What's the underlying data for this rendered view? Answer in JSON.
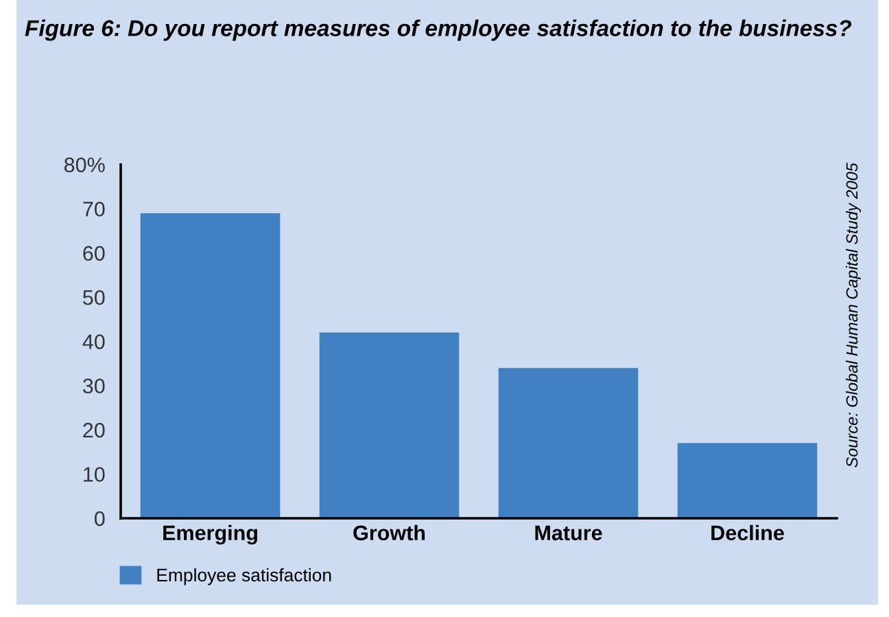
{
  "chart_data": {
    "type": "bar",
    "title": "Figure 6: Do you report measures of employee satisfaction to the business?",
    "categories": [
      "Emerging",
      "Growth",
      "Mature",
      "Decline"
    ],
    "series": [
      {
        "name": "Employee satisfaction",
        "color": "#4280c4",
        "values": [
          69,
          42,
          34,
          17
        ]
      }
    ],
    "ylim": [
      0,
      80
    ],
    "yticks": [
      0,
      10,
      20,
      30,
      40,
      50,
      60,
      70,
      {
        "value": 80,
        "label": "80%"
      }
    ],
    "grid": false,
    "legend": "bottom left",
    "annotations": [
      "Source: Global Human Capital Study 2005"
    ]
  }
}
